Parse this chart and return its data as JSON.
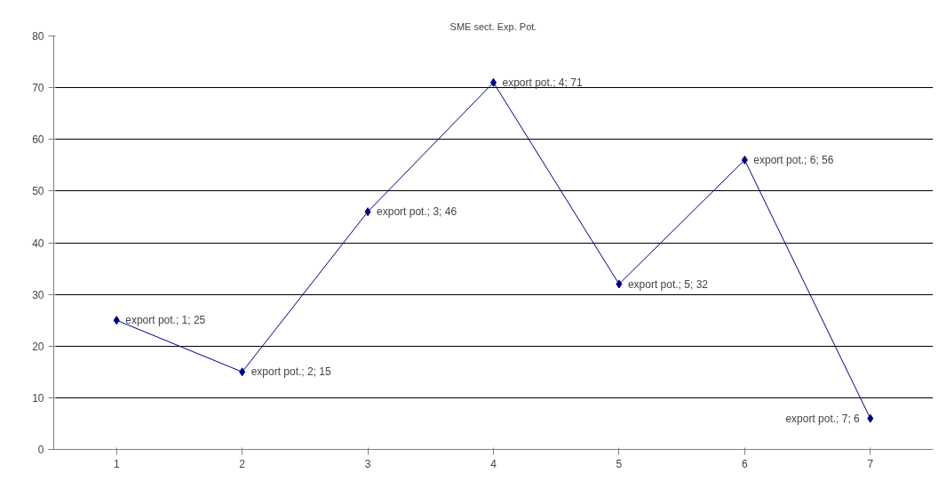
{
  "chart_data": {
    "type": "line",
    "title": "SME sect. Exp. Pot.",
    "categories": [
      "1",
      "2",
      "3",
      "4",
      "5",
      "6",
      "7"
    ],
    "series": [
      {
        "color": "#000080",
        "values": [
          25,
          15,
          46,
          71,
          32,
          56,
          6
        ],
        "value_labels": [
          "export pot.; 1; 25",
          "export pot.; 2; 15",
          "export pot.; 3; 46",
          "export pot.; 4; 71",
          "export pot.; 5; 32",
          "export pot.; 6; 56",
          "export pot.; 7; 6"
        ]
      }
    ],
    "ylim": [
      0,
      80
    ],
    "yticks": [
      0,
      10,
      20,
      30,
      40,
      50,
      60,
      70,
      80
    ],
    "grid": "y",
    "marker": "diamond",
    "line_style": "solid"
  }
}
